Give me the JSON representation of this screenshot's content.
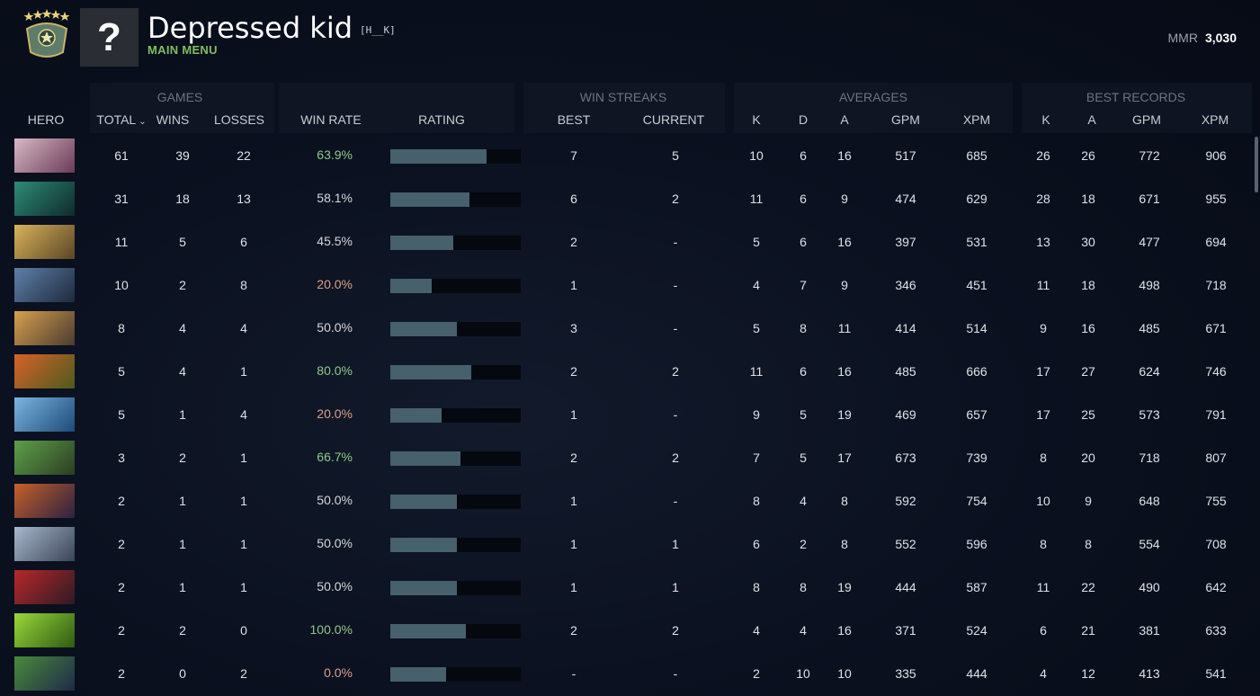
{
  "player": {
    "name": "Depressed kid",
    "tag": "[H__K]",
    "menu_label": "MAIN MENU",
    "mmr_label": "MMR",
    "mmr_value": "3,030",
    "avatar_glyph": "?",
    "rank_emblem": "rank-emblem-icon"
  },
  "groups": {
    "games": "GAMES",
    "win_streaks": "WIN STREAKS",
    "averages": "AVERAGES",
    "best_records": "BEST RECORDS"
  },
  "columns": {
    "hero": "HERO",
    "total": "TOTAL",
    "wins": "WINS",
    "losses": "LOSSES",
    "win_rate": "WIN RATE",
    "rating": "RATING",
    "best": "BEST",
    "current": "CURRENT",
    "avg_k": "K",
    "avg_d": "D",
    "avg_a": "A",
    "avg_gpm": "GPM",
    "avg_xpm": "XPM",
    "best_k": "K",
    "best_a": "A",
    "best_gpm": "GPM",
    "best_xpm": "XPM",
    "sort_icon": "chevron-down-icon"
  },
  "colors": {
    "win_rate_high": "#8fc98a",
    "win_rate_mid": "#d6d8da",
    "win_rate_low": "#d9a08a",
    "rating_bar": "#46606c"
  },
  "rows": [
    {
      "hero": {
        "c1": "#d7b9c4",
        "c2": "#6b3a58"
      },
      "total": "61",
      "wins": "39",
      "losses": "22",
      "win_rate": "63.9%",
      "tier": "high",
      "rating": 0.74,
      "best": "7",
      "current": "5",
      "avg_k": "10",
      "avg_d": "6",
      "avg_a": "16",
      "avg_gpm": "517",
      "avg_xpm": "685",
      "best_k": "26",
      "best_a": "26",
      "best_gpm": "772",
      "best_xpm": "906"
    },
    {
      "hero": {
        "c1": "#2d8c76",
        "c2": "#0f2a2c"
      },
      "total": "31",
      "wins": "18",
      "losses": "13",
      "win_rate": "58.1%",
      "tier": "mid",
      "rating": 0.61,
      "best": "6",
      "current": "2",
      "avg_k": "11",
      "avg_d": "6",
      "avg_a": "9",
      "avg_gpm": "474",
      "avg_xpm": "629",
      "best_k": "28",
      "best_a": "18",
      "best_gpm": "671",
      "best_xpm": "955"
    },
    {
      "hero": {
        "c1": "#d8b35a",
        "c2": "#5a4526"
      },
      "total": "11",
      "wins": "5",
      "losses": "6",
      "win_rate": "45.5%",
      "tier": "mid",
      "rating": 0.48,
      "best": "2",
      "current": "-",
      "avg_k": "5",
      "avg_d": "6",
      "avg_a": "16",
      "avg_gpm": "397",
      "avg_xpm": "531",
      "best_k": "13",
      "best_a": "30",
      "best_gpm": "477",
      "best_xpm": "694"
    },
    {
      "hero": {
        "c1": "#5f7fa8",
        "c2": "#1e2a3d"
      },
      "total": "10",
      "wins": "2",
      "losses": "8",
      "win_rate": "20.0%",
      "tier": "low",
      "rating": 0.32,
      "best": "1",
      "current": "-",
      "avg_k": "4",
      "avg_d": "7",
      "avg_a": "9",
      "avg_gpm": "346",
      "avg_xpm": "451",
      "best_k": "11",
      "best_a": "18",
      "best_gpm": "498",
      "best_xpm": "718"
    },
    {
      "hero": {
        "c1": "#d6a04e",
        "c2": "#4a3a30"
      },
      "total": "8",
      "wins": "4",
      "losses": "4",
      "win_rate": "50.0%",
      "tier": "mid",
      "rating": 0.51,
      "best": "3",
      "current": "-",
      "avg_k": "5",
      "avg_d": "8",
      "avg_a": "11",
      "avg_gpm": "414",
      "avg_xpm": "514",
      "best_k": "9",
      "best_a": "16",
      "best_gpm": "485",
      "best_xpm": "671"
    },
    {
      "hero": {
        "c1": "#d8622a",
        "c2": "#4d5a1d"
      },
      "total": "5",
      "wins": "4",
      "losses": "1",
      "win_rate": "80.0%",
      "tier": "high",
      "rating": 0.62,
      "best": "2",
      "current": "2",
      "avg_k": "11",
      "avg_d": "6",
      "avg_a": "16",
      "avg_gpm": "485",
      "avg_xpm": "666",
      "best_k": "17",
      "best_a": "27",
      "best_gpm": "624",
      "best_xpm": "746"
    },
    {
      "hero": {
        "c1": "#7bb6e0",
        "c2": "#1d4a78"
      },
      "total": "5",
      "wins": "1",
      "losses": "4",
      "win_rate": "20.0%",
      "tier": "low",
      "rating": 0.39,
      "best": "1",
      "current": "-",
      "avg_k": "9",
      "avg_d": "5",
      "avg_a": "19",
      "avg_gpm": "469",
      "avg_xpm": "657",
      "best_k": "17",
      "best_a": "25",
      "best_gpm": "573",
      "best_xpm": "791"
    },
    {
      "hero": {
        "c1": "#5fa04a",
        "c2": "#2a3d22"
      },
      "total": "3",
      "wins": "2",
      "losses": "1",
      "win_rate": "66.7%",
      "tier": "high",
      "rating": 0.54,
      "best": "2",
      "current": "2",
      "avg_k": "7",
      "avg_d": "5",
      "avg_a": "17",
      "avg_gpm": "673",
      "avg_xpm": "739",
      "best_k": "8",
      "best_a": "20",
      "best_gpm": "718",
      "best_xpm": "807"
    },
    {
      "hero": {
        "c1": "#c8602a",
        "c2": "#2b2240"
      },
      "total": "2",
      "wins": "1",
      "losses": "1",
      "win_rate": "50.0%",
      "tier": "mid",
      "rating": 0.51,
      "best": "1",
      "current": "-",
      "avg_k": "8",
      "avg_d": "4",
      "avg_a": "8",
      "avg_gpm": "592",
      "avg_xpm": "754",
      "best_k": "10",
      "best_a": "9",
      "best_gpm": "648",
      "best_xpm": "755"
    },
    {
      "hero": {
        "c1": "#a8b8cc",
        "c2": "#3a4458"
      },
      "total": "2",
      "wins": "1",
      "losses": "1",
      "win_rate": "50.0%",
      "tier": "mid",
      "rating": 0.51,
      "best": "1",
      "current": "1",
      "avg_k": "6",
      "avg_d": "2",
      "avg_a": "8",
      "avg_gpm": "552",
      "avg_xpm": "596",
      "best_k": "8",
      "best_a": "8",
      "best_gpm": "554",
      "best_xpm": "708"
    },
    {
      "hero": {
        "c1": "#b8282a",
        "c2": "#2e1a24"
      },
      "total": "2",
      "wins": "1",
      "losses": "1",
      "win_rate": "50.0%",
      "tier": "mid",
      "rating": 0.51,
      "best": "1",
      "current": "1",
      "avg_k": "8",
      "avg_d": "8",
      "avg_a": "19",
      "avg_gpm": "444",
      "avg_xpm": "587",
      "best_k": "11",
      "best_a": "22",
      "best_gpm": "490",
      "best_xpm": "642"
    },
    {
      "hero": {
        "c1": "#9ad83a",
        "c2": "#2e5a12"
      },
      "total": "2",
      "wins": "2",
      "losses": "0",
      "win_rate": "100.0%",
      "tier": "high",
      "rating": 0.58,
      "best": "2",
      "current": "2",
      "avg_k": "4",
      "avg_d": "4",
      "avg_a": "16",
      "avg_gpm": "371",
      "avg_xpm": "524",
      "best_k": "6",
      "best_a": "21",
      "best_gpm": "381",
      "best_xpm": "633"
    },
    {
      "hero": {
        "c1": "#4a8a3a",
        "c2": "#1e2a4a"
      },
      "total": "2",
      "wins": "0",
      "losses": "2",
      "win_rate": "0.0%",
      "tier": "low",
      "rating": 0.43,
      "best": "-",
      "current": "-",
      "avg_k": "2",
      "avg_d": "10",
      "avg_a": "10",
      "avg_gpm": "335",
      "avg_xpm": "444",
      "best_k": "4",
      "best_a": "12",
      "best_gpm": "413",
      "best_xpm": "541"
    }
  ]
}
